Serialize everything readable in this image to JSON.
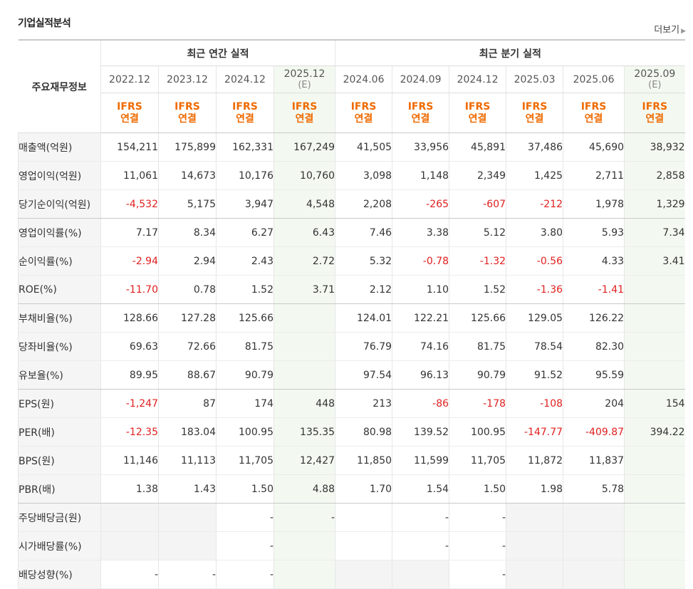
{
  "header": {
    "title": "기업실적분석",
    "more_label": "더보기"
  },
  "table": {
    "label_header": "주요재무정보",
    "group_annual": "최근 연간 실적",
    "group_quarter": "최근 분기 실적",
    "periods": [
      {
        "label": "2022.12",
        "sub": "",
        "estimate": false
      },
      {
        "label": "2023.12",
        "sub": "",
        "estimate": false
      },
      {
        "label": "2024.12",
        "sub": "",
        "estimate": false
      },
      {
        "label": "2025.12",
        "sub": "(E)",
        "estimate": true
      },
      {
        "label": "2024.06",
        "sub": "",
        "estimate": false
      },
      {
        "label": "2024.09",
        "sub": "",
        "estimate": false
      },
      {
        "label": "2024.12",
        "sub": "",
        "estimate": false
      },
      {
        "label": "2025.03",
        "sub": "",
        "estimate": false
      },
      {
        "label": "2025.06",
        "sub": "",
        "estimate": false
      },
      {
        "label": "2025.09",
        "sub": "(E)",
        "estimate": true
      }
    ],
    "ifrs_line1": "IFRS",
    "ifrs_line2": "연결",
    "rows": [
      {
        "label": "매출액(억원)",
        "values": [
          "154,211",
          "175,899",
          "162,331",
          "167,249",
          "41,505",
          "33,956",
          "45,891",
          "37,486",
          "45,690",
          "38,932"
        ]
      },
      {
        "label": "영업이익(억원)",
        "values": [
          "11,061",
          "14,673",
          "10,176",
          "10,760",
          "3,098",
          "1,148",
          "2,349",
          "1,425",
          "2,711",
          "2,858"
        ]
      },
      {
        "label": "당기순이익(억원)",
        "values": [
          "-4,532",
          "5,175",
          "3,947",
          "4,548",
          "2,208",
          "-265",
          "-607",
          "-212",
          "1,978",
          "1,329"
        ],
        "sep": true
      },
      {
        "label": "영업이익률(%)",
        "values": [
          "7.17",
          "8.34",
          "6.27",
          "6.43",
          "7.46",
          "3.38",
          "5.12",
          "3.80",
          "5.93",
          "7.34"
        ]
      },
      {
        "label": "순이익률(%)",
        "values": [
          "-2.94",
          "2.94",
          "2.43",
          "2.72",
          "5.32",
          "-0.78",
          "-1.32",
          "-0.56",
          "4.33",
          "3.41"
        ]
      },
      {
        "label": "ROE(%)",
        "values": [
          "-11.70",
          "0.78",
          "1.52",
          "3.71",
          "2.12",
          "1.10",
          "1.52",
          "-1.36",
          "-1.41",
          ""
        ],
        "sep": true
      },
      {
        "label": "부채비율(%)",
        "values": [
          "128.66",
          "127.28",
          "125.66",
          "",
          "124.01",
          "122.21",
          "125.66",
          "129.05",
          "126.22",
          ""
        ]
      },
      {
        "label": "당좌비율(%)",
        "values": [
          "69.63",
          "72.66",
          "81.75",
          "",
          "76.79",
          "74.16",
          "81.75",
          "78.54",
          "82.30",
          ""
        ]
      },
      {
        "label": "유보율(%)",
        "values": [
          "89.95",
          "88.67",
          "90.79",
          "",
          "97.54",
          "96.13",
          "90.79",
          "91.52",
          "95.59",
          ""
        ],
        "sep": true
      },
      {
        "label": "EPS(원)",
        "values": [
          "-1,247",
          "87",
          "174",
          "448",
          "213",
          "-86",
          "-178",
          "-108",
          "204",
          "154"
        ]
      },
      {
        "label": "PER(배)",
        "values": [
          "-12.35",
          "183.04",
          "100.95",
          "135.35",
          "80.98",
          "139.52",
          "100.95",
          "-147.77",
          "-409.87",
          "394.22"
        ]
      },
      {
        "label": "BPS(원)",
        "values": [
          "11,146",
          "11,113",
          "11,705",
          "12,427",
          "11,850",
          "11,599",
          "11,705",
          "11,872",
          "11,837",
          ""
        ]
      },
      {
        "label": "PBR(배)",
        "values": [
          "1.38",
          "1.43",
          "1.50",
          "4.88",
          "1.70",
          "1.54",
          "1.50",
          "1.98",
          "5.78",
          ""
        ],
        "sep": true
      },
      {
        "label": "주당배당금(원)",
        "values": [
          "",
          "",
          "-",
          "-",
          "",
          "-",
          "-",
          "",
          "",
          ""
        ],
        "grey": [
          0,
          1,
          7,
          8
        ]
      },
      {
        "label": "시가배당률(%)",
        "values": [
          "",
          "",
          "-",
          "",
          "",
          "-",
          "-",
          "",
          "",
          ""
        ],
        "grey": [
          0,
          1,
          7,
          8
        ]
      },
      {
        "label": "배당성향(%)",
        "values": [
          "-",
          "-",
          "-",
          "",
          "",
          "",
          "-",
          "",
          "",
          ""
        ],
        "grey": [
          4,
          5,
          7,
          8
        ]
      }
    ]
  },
  "colors": {
    "negative": "#e02020",
    "ifrs": "#ef6a00",
    "estimate_bg": "#f3f9f1",
    "label_bg": "#f5f5f5"
  }
}
